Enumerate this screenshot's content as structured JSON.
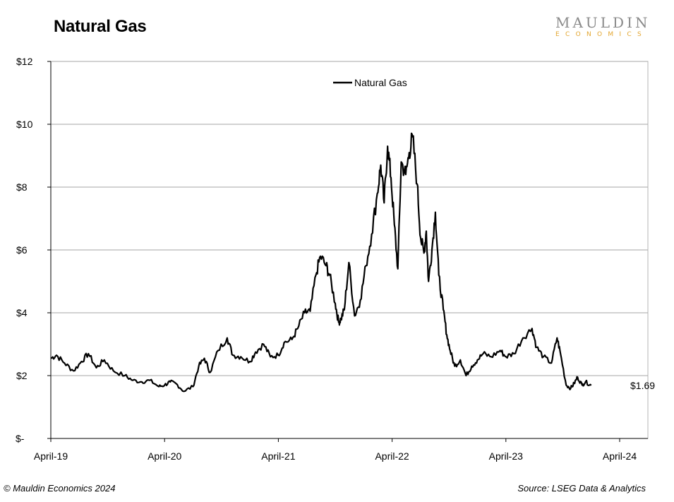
{
  "chart_data": {
    "type": "line",
    "title": "Natural Gas",
    "xlabel": "",
    "ylabel": "",
    "x_ticks": [
      "April-19",
      "April-20",
      "April-21",
      "April-22",
      "April-23",
      "April-24"
    ],
    "y_ticks": [
      "$-",
      "$2",
      "$4",
      "$6",
      "$8",
      "$10",
      "$12"
    ],
    "ylim": [
      0,
      12
    ],
    "grid": true,
    "legend": "top-center",
    "last_value_label": "$1.69",
    "series": [
      {
        "name": "Natural Gas",
        "color": "#000000",
        "x": [
          2019.25,
          2019.3,
          2019.37,
          2019.45,
          2019.52,
          2019.58,
          2019.65,
          2019.72,
          2019.8,
          2019.9,
          2019.97,
          2020.05,
          2020.12,
          2020.2,
          2020.25,
          2020.3,
          2020.35,
          2020.42,
          2020.5,
          2020.55,
          2020.6,
          2020.65,
          2020.72,
          2020.8,
          2020.85,
          2020.92,
          2021.0,
          2021.05,
          2021.12,
          2021.18,
          2021.25,
          2021.3,
          2021.37,
          2021.42,
          2021.48,
          2021.53,
          2021.58,
          2021.62,
          2021.67,
          2021.7,
          2021.75,
          2021.78,
          2021.8,
          2021.83,
          2021.87,
          2021.92,
          2021.97,
          2022.02,
          2022.07,
          2022.12,
          2022.15,
          2022.18,
          2022.21,
          2022.24,
          2022.27,
          2022.3,
          2022.33,
          2022.37,
          2022.4,
          2022.43,
          2022.47,
          2022.5,
          2022.53,
          2022.55,
          2022.57,
          2022.6,
          2022.63,
          2022.66,
          2022.7,
          2022.73,
          2022.76,
          2022.8,
          2022.85,
          2022.9,
          2022.95,
          2023.0,
          2023.05,
          2023.12,
          2023.2,
          2023.25,
          2023.32,
          2023.4,
          2023.48,
          2023.52,
          2023.58,
          2023.65,
          2023.7,
          2023.73,
          2023.78,
          2023.82,
          2023.85,
          2023.88,
          2023.92,
          2023.95,
          2024.0
        ],
        "values": [
          2.55,
          2.65,
          2.4,
          2.15,
          2.45,
          2.7,
          2.25,
          2.5,
          2.15,
          2.0,
          1.85,
          1.8,
          1.85,
          1.65,
          1.7,
          1.8,
          1.75,
          1.5,
          1.65,
          2.3,
          2.55,
          2.1,
          2.8,
          3.2,
          2.65,
          2.6,
          2.45,
          2.75,
          3.0,
          2.6,
          2.65,
          3.05,
          3.15,
          3.5,
          4.0,
          4.05,
          5.2,
          5.8,
          5.5,
          5.2,
          4.3,
          3.7,
          3.8,
          4.1,
          5.6,
          3.9,
          4.4,
          5.5,
          6.5,
          7.8,
          8.7,
          7.5,
          9.3,
          8.3,
          6.8,
          5.4,
          8.8,
          8.4,
          9.1,
          9.6,
          8.1,
          6.4,
          5.9,
          6.6,
          5.0,
          6.0,
          7.2,
          5.2,
          4.1,
          3.3,
          2.8,
          2.3,
          2.5,
          2.0,
          2.3,
          2.5,
          2.7,
          2.6,
          2.8,
          2.6,
          2.7,
          3.2,
          3.5,
          2.9,
          2.6,
          2.4,
          3.2,
          2.7,
          1.7,
          1.6,
          1.75,
          1.95,
          1.7,
          1.8,
          1.69
        ]
      }
    ]
  },
  "header": {
    "title": "Natural Gas",
    "logo_top": "MAULDIN",
    "logo_bottom": "ECONOMICS"
  },
  "footer": {
    "left": "© Mauldin Economics 2024",
    "right": "Source: LSEG Data & Analytics"
  }
}
